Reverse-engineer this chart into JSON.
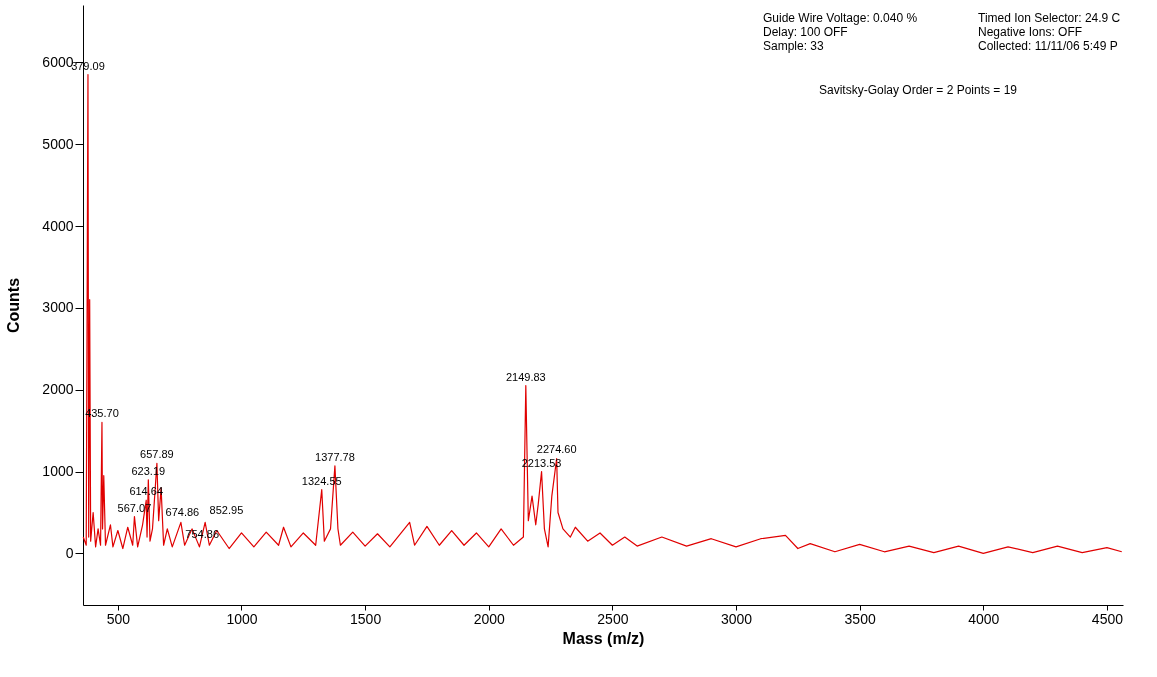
{
  "chart_data": {
    "type": "line",
    "xlabel": "Mass (m/z)",
    "ylabel": "Counts",
    "x": [
      360,
      372,
      379.09,
      382,
      386,
      390,
      400,
      410,
      420,
      430,
      435.7,
      438,
      443,
      450,
      470,
      480,
      500,
      520,
      540,
      560,
      567.07,
      580,
      600,
      614.64,
      618,
      623.19,
      630,
      640,
      657.89,
      665,
      674.86,
      685,
      700,
      720,
      754.86,
      770,
      800,
      830,
      852.95,
      870,
      900,
      950,
      1000,
      1050,
      1100,
      1150,
      1170,
      1200,
      1250,
      1300,
      1324.55,
      1335,
      1360,
      1377.78,
      1390,
      1400,
      1450,
      1500,
      1550,
      1600,
      1680,
      1700,
      1750,
      1800,
      1850,
      1900,
      1950,
      2000,
      2050,
      2100,
      2140,
      2149.83,
      2155,
      2160,
      2175,
      2190,
      2200,
      2213.53,
      2225,
      2240,
      2255,
      2274.6,
      2280,
      2300,
      2330,
      2350,
      2400,
      2450,
      2500,
      2550,
      2600,
      2700,
      2800,
      2900,
      3000,
      3100,
      3200,
      3250,
      3300,
      3400,
      3500,
      3600,
      3700,
      3800,
      3900,
      4000,
      4100,
      4200,
      4300,
      4400,
      4500,
      4560
    ],
    "series": [
      {
        "color": "#e00000",
        "values": [
          200,
          100,
          5850,
          200,
          3100,
          150,
          500,
          80,
          300,
          100,
          1600,
          300,
          950,
          100,
          350,
          80,
          280,
          60,
          320,
          100,
          450,
          80,
          350,
          650,
          200,
          900,
          150,
          300,
          1100,
          400,
          800,
          100,
          300,
          80,
          380,
          100,
          300,
          80,
          380,
          100,
          280,
          60,
          250,
          80,
          260,
          100,
          320,
          80,
          250,
          100,
          780,
          150,
          300,
          1070,
          300,
          100,
          260,
          90,
          240,
          80,
          380,
          100,
          330,
          100,
          280,
          100,
          250,
          80,
          300,
          100,
          200,
          2050,
          1200,
          400,
          700,
          350,
          600,
          1000,
          300,
          80,
          700,
          1160,
          500,
          300,
          200,
          320,
          150,
          250,
          100,
          200,
          90,
          200,
          90,
          180,
          80,
          180,
          220,
          60,
          120,
          20,
          110,
          20,
          90,
          10,
          90,
          0,
          80,
          10,
          90,
          10,
          70,
          20
        ]
      }
    ],
    "xlim": [
      359,
      4565
    ],
    "xticks": [
      500,
      1000,
      1500,
      2000,
      2500,
      3000,
      3500,
      4000,
      4500
    ],
    "ylim": [
      -630,
      6700
    ],
    "yticks": [
      0,
      1000,
      2000,
      3000,
      4000,
      5000,
      6000
    ],
    "grid": false,
    "marker": "none",
    "line_style": "solid",
    "annotations": [
      {
        "text": "379.09",
        "x": 379.09,
        "y": 5850
      },
      {
        "text": "435.70",
        "x": 435.7,
        "y": 1600
      },
      {
        "text": "754.86",
        "x": 754.86,
        "y": 380
      },
      {
        "text": "657.89",
        "x": 657.89,
        "y": 1100
      },
      {
        "text": "674.86",
        "x": 674.86,
        "y": 800
      },
      {
        "text": "623.19",
        "x": 623.19,
        "y": 900
      },
      {
        "text": "614.64",
        "x": 614.64,
        "y": 650
      },
      {
        "text": "567.07",
        "x": 567.07,
        "y": 450
      },
      {
        "text": "852.95",
        "x": 852.95,
        "y": 380
      },
      {
        "text": "1377.78",
        "x": 1377.78,
        "y": 1070
      },
      {
        "text": "1324.55",
        "x": 1324.55,
        "y": 780
      },
      {
        "text": "2149.83",
        "x": 2149.83,
        "y": 2050
      },
      {
        "text": "2274.60",
        "x": 2274.6,
        "y": 1160
      },
      {
        "text": "2213.53",
        "x": 2213.53,
        "y": 1000
      },
      "Guide Wire Voltage: 0.040 %",
      "Delay: 100 OFF",
      "Sample: 33",
      "Timed Ion Selector: 24.9 C",
      "Negative Ions: OFF",
      "Collected: 11/11/06 5:49 P",
      "Savitsky-Golay Order = 2 Points = 19"
    ]
  }
}
